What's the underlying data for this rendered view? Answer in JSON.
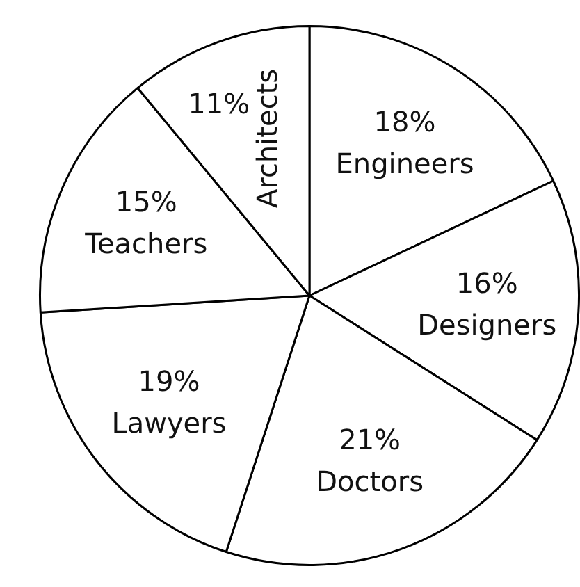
{
  "chart_data": {
    "type": "pie",
    "categories": [
      "Engineers",
      "Designers",
      "Doctors",
      "Lawyers",
      "Teachers",
      "Architects"
    ],
    "values": [
      18,
      16,
      21,
      19,
      15,
      11
    ],
    "value_labels": [
      "18%",
      "16%",
      "21%",
      "19%",
      "15%",
      "11%"
    ],
    "colors": [
      "#ffffff",
      "#ffffff",
      "#ffffff",
      "#ffffff",
      "#ffffff",
      "#ffffff"
    ],
    "legend": false
  }
}
